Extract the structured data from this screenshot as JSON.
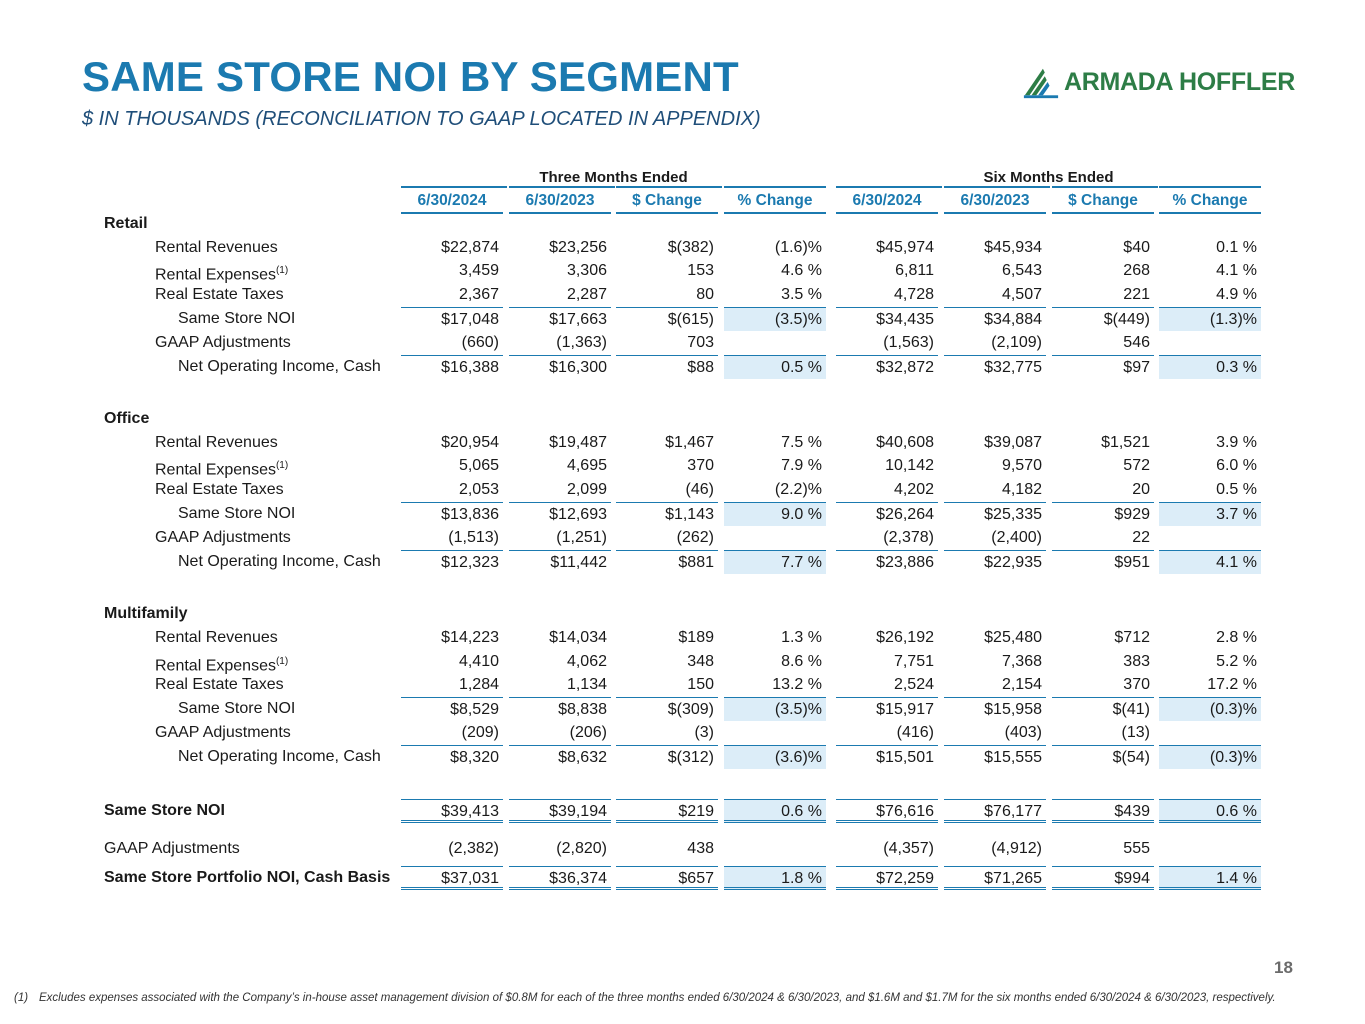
{
  "header": {
    "title": "SAME STORE NOI BY SEGMENT",
    "subtitle": "$ IN THOUSANDS (RECONCILIATION TO GAAP LOCATED IN APPENDIX)",
    "logo_text": "ARMADA HOFFLER",
    "brand_color": "#1b7ab0",
    "logo_color": "#2d7d46"
  },
  "table": {
    "groups": [
      "Three Months Ended",
      "Six Months Ended"
    ],
    "columns": [
      "6/30/2024",
      "6/30/2023",
      "$ Change",
      "% Change",
      "6/30/2024",
      "6/30/2023",
      "$ Change",
      "% Change"
    ],
    "rows": [
      {
        "label": "Retail",
        "bold": true,
        "indent": 0,
        "values": [
          "",
          "",
          "",
          "",
          "",
          "",
          "",
          ""
        ]
      },
      {
        "label": "Rental Revenues",
        "indent": 1,
        "values": [
          "$22,874",
          "$23,256",
          "$(382)",
          "(1.6)%",
          "$45,974",
          "$45,934",
          "$40",
          "0.1 %"
        ]
      },
      {
        "label": "Rental Expenses",
        "sup": "(1)",
        "indent": 1,
        "values": [
          "3,459",
          "3,306",
          "153",
          "4.6 %",
          "6,811",
          "6,543",
          "268",
          "4.1 %"
        ]
      },
      {
        "label": "Real Estate Taxes",
        "indent": 1,
        "values": [
          "2,367",
          "2,287",
          "80",
          "3.5 %",
          "4,728",
          "4,507",
          "221",
          "4.9 %"
        ]
      },
      {
        "label": "Same Store NOI",
        "indent": 2,
        "values": [
          "$17,048",
          "$17,663",
          "$(615)",
          "(3.5)%",
          "$34,435",
          "$34,884",
          "$(449)",
          "(1.3)%"
        ]
      },
      {
        "label": "GAAP Adjustments",
        "indent": 1,
        "values": [
          "(660)",
          "(1,363)",
          "703",
          "",
          "(1,563)",
          "(2,109)",
          "546",
          ""
        ]
      },
      {
        "label": "Net Operating Income, Cash",
        "indent": 2,
        "values": [
          "$16,388",
          "$16,300",
          "$88",
          "0.5 %",
          "$32,872",
          "$32,775",
          "$97",
          "0.3 %"
        ]
      },
      {
        "label": "Office",
        "bold": true,
        "indent": 0,
        "values": [
          "",
          "",
          "",
          "",
          "",
          "",
          "",
          ""
        ]
      },
      {
        "label": "Rental Revenues",
        "indent": 1,
        "values": [
          "$20,954",
          "$19,487",
          "$1,467",
          "7.5 %",
          "$40,608",
          "$39,087",
          "$1,521",
          "3.9 %"
        ]
      },
      {
        "label": "Rental Expenses",
        "sup": "(1)",
        "indent": 1,
        "values": [
          "5,065",
          "4,695",
          "370",
          "7.9 %",
          "10,142",
          "9,570",
          "572",
          "6.0 %"
        ]
      },
      {
        "label": "Real Estate Taxes",
        "indent": 1,
        "values": [
          "2,053",
          "2,099",
          "(46)",
          "(2.2)%",
          "4,202",
          "4,182",
          "20",
          "0.5 %"
        ]
      },
      {
        "label": "Same Store NOI",
        "indent": 2,
        "values": [
          "$13,836",
          "$12,693",
          "$1,143",
          "9.0 %",
          "$26,264",
          "$25,335",
          "$929",
          "3.7 %"
        ]
      },
      {
        "label": "GAAP Adjustments",
        "indent": 1,
        "values": [
          "(1,513)",
          "(1,251)",
          "(262)",
          "",
          "(2,378)",
          "(2,400)",
          "22",
          ""
        ]
      },
      {
        "label": "Net Operating Income, Cash",
        "indent": 2,
        "values": [
          "$12,323",
          "$11,442",
          "$881",
          "7.7 %",
          "$23,886",
          "$22,935",
          "$951",
          "4.1 %"
        ]
      },
      {
        "label": "Multifamily",
        "bold": true,
        "indent": 0,
        "values": [
          "",
          "",
          "",
          "",
          "",
          "",
          "",
          ""
        ]
      },
      {
        "label": "Rental Revenues",
        "indent": 1,
        "values": [
          "$14,223",
          "$14,034",
          "$189",
          "1.3 %",
          "$26,192",
          "$25,480",
          "$712",
          "2.8 %"
        ]
      },
      {
        "label": "Rental Expenses",
        "sup": "(1)",
        "indent": 1,
        "values": [
          "4,410",
          "4,062",
          "348",
          "8.6 %",
          "7,751",
          "7,368",
          "383",
          "5.2 %"
        ]
      },
      {
        "label": "Real Estate Taxes",
        "indent": 1,
        "values": [
          "1,284",
          "1,134",
          "150",
          "13.2 %",
          "2,524",
          "2,154",
          "370",
          "17.2 %"
        ]
      },
      {
        "label": "Same Store NOI",
        "indent": 2,
        "values": [
          "$8,529",
          "$8,838",
          "$(309)",
          "(3.5)%",
          "$15,917",
          "$15,958",
          "$(41)",
          "(0.3)%"
        ]
      },
      {
        "label": "GAAP Adjustments",
        "indent": 1,
        "values": [
          "(209)",
          "(206)",
          "(3)",
          "",
          "(416)",
          "(403)",
          "(13)",
          ""
        ]
      },
      {
        "label": "Net Operating Income, Cash",
        "indent": 2,
        "values": [
          "$8,320",
          "$8,632",
          "$(312)",
          "(3.6)%",
          "$15,501",
          "$15,555",
          "$(54)",
          "(0.3)%"
        ]
      },
      {
        "label": "Same Store NOI",
        "bold": true,
        "indent": 0,
        "values": [
          "$39,413",
          "$39,194",
          "$219",
          "0.6 %",
          "$76,616",
          "$76,177",
          "$439",
          "0.6 %"
        ]
      },
      {
        "label": "GAAP Adjustments",
        "indent": 0,
        "values": [
          "(2,382)",
          "(2,820)",
          "438",
          "",
          "(4,357)",
          "(4,912)",
          "555",
          ""
        ]
      },
      {
        "label": "Same Store Portfolio NOI, Cash Basis",
        "bold": true,
        "indent": 0,
        "values": [
          "$37,031",
          "$36,374",
          "$657",
          "1.8 %",
          "$72,259",
          "$71,265",
          "$994",
          "1.4 %"
        ]
      }
    ]
  },
  "page_number": "18",
  "footnote": {
    "mark": "(1)",
    "text": "Excludes expenses associated with the Company’s in-house asset management division of $0.8M for each of the three months ended 6/30/2024 & 6/30/2023, and $1.6M and $1.7M for the six months ended 6/30/2024 & 6/30/2023, respectively."
  }
}
